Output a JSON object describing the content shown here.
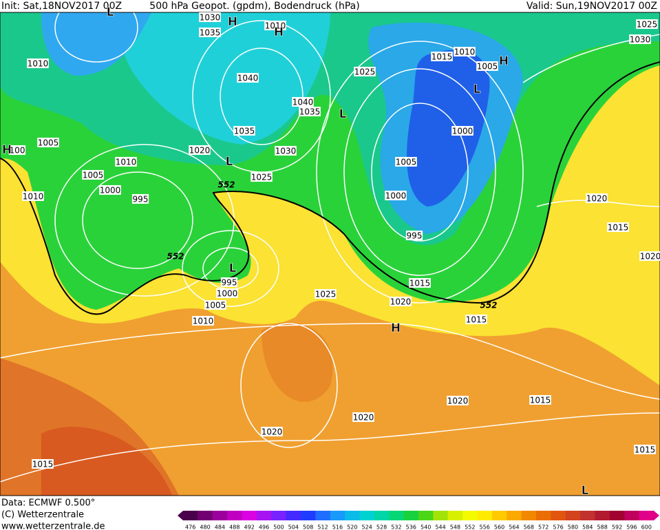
{
  "header": {
    "init": "Init: Sat,18NOV2017 00Z",
    "title": "500 hPa Geopot. (gpdm), Bodendruck (hPa)",
    "valid": "Valid: Sun,19NOV2017 00Z"
  },
  "footer": {
    "data": "Data: ECMWF  0.500°",
    "copyright": "(C) Wetterzentrale",
    "url": "www.wetterzentrale.de"
  },
  "map": {
    "isobar_labels": [
      "1030",
      "1035",
      "1010",
      "1025",
      "1030",
      "1010",
      "1015",
      "1010",
      "1005",
      "1025",
      "1040",
      "1040",
      "1035",
      "1035",
      "1000",
      "1005",
      "1020",
      "1030",
      "100",
      "1010",
      "1005",
      "1025",
      "1005",
      "1000",
      "1010",
      "995",
      "1000",
      "1020",
      "1015",
      "995",
      "1020",
      "995",
      "1000",
      "1015",
      "1025",
      "1020",
      "1005",
      "1015",
      "1010",
      "1020",
      "1015",
      "1020",
      "1020",
      "1015",
      "1015"
    ],
    "contour_labels": [
      "552",
      "552",
      "552"
    ],
    "pressure_centers": [
      "H",
      "H",
      "L",
      "H",
      "L",
      "L",
      "L",
      "L",
      "H",
      "H",
      "L"
    ]
  },
  "colorbar": {
    "levels": [
      476,
      480,
      484,
      488,
      492,
      496,
      500,
      504,
      508,
      512,
      516,
      520,
      524,
      528,
      532,
      536,
      540,
      544,
      548,
      552,
      556,
      560,
      564,
      568,
      572,
      576,
      580,
      584,
      588,
      592,
      596,
      600
    ]
  }
}
